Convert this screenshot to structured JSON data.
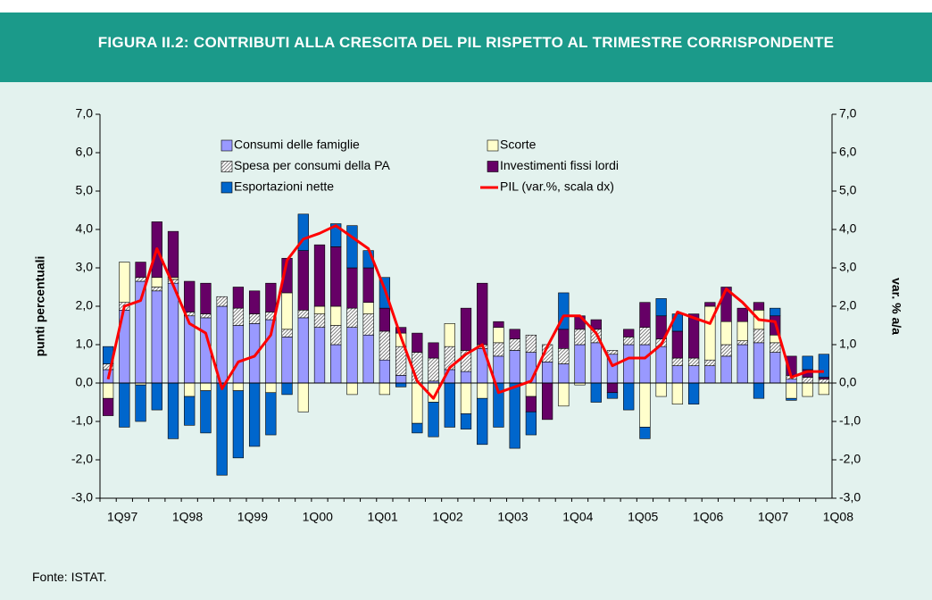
{
  "chart_data": {
    "type": "bar",
    "stacked": true,
    "title": "FIGURA II.2: CONTRIBUTI ALLA CRESCITA DEL PIL RISPETTO AL TRIMESTRE CORRISPONDENTE",
    "ylabel": "punti percentuali",
    "y2label": "var. % a/a",
    "source": "Fonte: ISTAT.",
    "categories": [
      "1Q97",
      null,
      null,
      null,
      "1Q98",
      null,
      null,
      null,
      "1Q99",
      null,
      null,
      null,
      "1Q00",
      null,
      null,
      null,
      "1Q01",
      null,
      null,
      null,
      "1Q02",
      null,
      null,
      null,
      "1Q03",
      null,
      null,
      null,
      "1Q04",
      null,
      null,
      null,
      "1Q05",
      null,
      null,
      null,
      "1Q06",
      null,
      null,
      null,
      "1Q07",
      null,
      null,
      null,
      "1Q08"
    ],
    "ylim": [
      -3,
      7
    ],
    "yticks": [
      {
        "value": -3,
        "label": "-3,0"
      },
      {
        "value": -2,
        "label": "-2,0"
      },
      {
        "value": -1,
        "label": "-1,0"
      },
      {
        "value": 0,
        "label": "0,0"
      },
      {
        "value": 1,
        "label": "1,0"
      },
      {
        "value": 2,
        "label": "2,0"
      },
      {
        "value": 3,
        "label": "3,0"
      },
      {
        "value": 4,
        "label": "4,0"
      },
      {
        "value": 5,
        "label": "5,0"
      },
      {
        "value": 6,
        "label": "6,0"
      },
      {
        "value": 7,
        "label": "7,0"
      }
    ],
    "y2lim": [
      -3,
      7
    ],
    "y2ticks": [
      {
        "value": -3,
        "label": "-3,0"
      },
      {
        "value": -2,
        "label": "-2,0"
      },
      {
        "value": -1,
        "label": "-1,0"
      },
      {
        "value": 0,
        "label": "0,0"
      },
      {
        "value": 1,
        "label": "1,0"
      },
      {
        "value": 2,
        "label": "2,0"
      },
      {
        "value": 3,
        "label": "3,0"
      },
      {
        "value": 4,
        "label": "4,0"
      },
      {
        "value": 5,
        "label": "5,0"
      },
      {
        "value": 6,
        "label": "6,0"
      },
      {
        "value": 7,
        "label": "7,0"
      }
    ],
    "grid": false,
    "series": [
      {
        "name": "Consumi delle famiglie",
        "type": "bar",
        "color": "#9999ff",
        "values": [
          0.35,
          1.9,
          2.65,
          2.4,
          2.6,
          1.75,
          1.7,
          2.0,
          1.5,
          1.55,
          1.65,
          1.2,
          1.7,
          1.45,
          1.0,
          1.45,
          1.25,
          0.6,
          0.2,
          0.0,
          0.05,
          0.35,
          0.3,
          0.9,
          0.7,
          0.85,
          0.8,
          0.55,
          0.5,
          1.0,
          1.05,
          0.75,
          1.0,
          1.0,
          0.95,
          0.45,
          0.45,
          0.45,
          0.7,
          1.0,
          1.05,
          0.8,
          0.1,
          0.0,
          0.0
        ]
      },
      {
        "name": "Spesa per consumi della PA",
        "type": "bar",
        "color": "#808080",
        "pattern": "hatch",
        "values": [
          0.15,
          0.2,
          0.1,
          0.1,
          0.1,
          0.1,
          0.1,
          0.25,
          0.45,
          0.25,
          0.2,
          0.2,
          0.2,
          0.35,
          0.5,
          0.5,
          0.55,
          0.75,
          0.75,
          0.8,
          0.6,
          0.6,
          0.55,
          0.1,
          0.35,
          0.3,
          0.45,
          0.45,
          0.4,
          0.4,
          0.35,
          0.1,
          0.2,
          0.45,
          0.2,
          0.2,
          0.2,
          0.15,
          0.3,
          0.1,
          0.35,
          0.25,
          0.1,
          0.15,
          0.1
        ]
      },
      {
        "name": "Scorte",
        "type": "bar",
        "color": "#ffffcc",
        "values": [
          -0.4,
          1.05,
          -0.05,
          0.25,
          0.05,
          -0.35,
          -0.2,
          0,
          -0.2,
          0,
          -0.25,
          0.95,
          -0.75,
          0.2,
          0.5,
          -0.3,
          0.3,
          -0.3,
          0.35,
          -1.05,
          -0.5,
          0.6,
          -0.8,
          -0.4,
          0.4,
          0,
          -0.35,
          0,
          -0.6,
          -0.05,
          0,
          0,
          0,
          -1.15,
          -0.35,
          -0.55,
          0,
          1.4,
          0.6,
          0.5,
          0.5,
          0.2,
          -0.4,
          -0.35,
          -0.3
        ]
      },
      {
        "name": "Investimenti fissi lordi",
        "type": "bar",
        "color": "#660066",
        "values": [
          -0.45,
          0,
          0.4,
          1.45,
          1.2,
          0.8,
          0.8,
          0,
          0.55,
          0.6,
          0.75,
          0.9,
          1.55,
          1.6,
          1.55,
          1.05,
          0.9,
          0.6,
          0.15,
          0.5,
          0.4,
          0,
          1.1,
          1.6,
          0.15,
          0.25,
          -0.4,
          -0.95,
          0.5,
          0.35,
          0.25,
          -0.25,
          0.2,
          0.65,
          0.6,
          0.7,
          1.15,
          0.1,
          0.9,
          0.35,
          0.2,
          0.5,
          0.5,
          0.2,
          0.05
        ]
      },
      {
        "name": "Esportazioni nette",
        "type": "bar",
        "color": "#0066cc",
        "values": [
          0.45,
          -1.15,
          -0.95,
          -0.7,
          -1.45,
          -0.75,
          -1.1,
          -2.4,
          -1.75,
          -1.65,
          -1.1,
          -0.3,
          0.95,
          0,
          0.6,
          1.1,
          0.45,
          0.8,
          -0.1,
          -0.25,
          -0.9,
          -1.15,
          -0.4,
          -1.2,
          -1.15,
          -1.7,
          -0.6,
          0,
          0.95,
          0,
          -0.5,
          -0.15,
          -0.7,
          -0.3,
          0.45,
          0.45,
          -0.55,
          0,
          0,
          0,
          -0.4,
          0.2,
          -0.05,
          0.35,
          0.6
        ]
      },
      {
        "name": "PIL (var.%, scala dx)",
        "type": "line",
        "axis": "y2",
        "color": "#ff0000",
        "values": [
          0.1,
          2.0,
          2.15,
          3.5,
          2.55,
          1.55,
          1.3,
          -0.15,
          0.55,
          0.7,
          1.25,
          3.2,
          3.75,
          3.9,
          4.1,
          3.8,
          3.5,
          2.45,
          1.2,
          0.05,
          -0.4,
          0.4,
          0.75,
          1.0,
          -0.25,
          -0.1,
          0.05,
          0.95,
          1.75,
          1.75,
          1.3,
          0.45,
          0.65,
          0.65,
          1.0,
          1.85,
          1.7,
          1.55,
          2.45,
          2.1,
          1.65,
          1.6,
          0.15,
          0.3,
          0.3
        ]
      }
    ]
  }
}
